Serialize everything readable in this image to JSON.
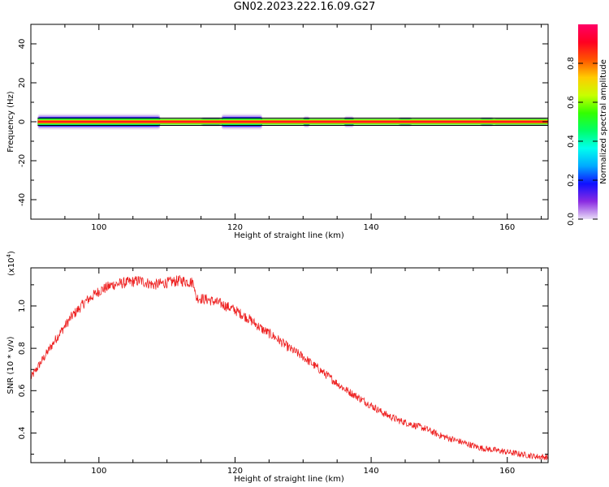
{
  "title": "GN02.2023.222.16.09.G27",
  "chart_data": [
    {
      "type": "heatmap",
      "xlabel": "Height of straight line (km)",
      "ylabel": "Frequency (Hz)",
      "xlim": [
        90,
        166
      ],
      "ylim": [
        -50,
        50
      ],
      "xticks": [
        100,
        120,
        140,
        160
      ],
      "yticks": [
        -40,
        -20,
        0,
        20,
        40
      ],
      "colorbar": {
        "label": "Normalized spectral amplitude",
        "range": [
          0,
          1
        ],
        "ticks": [
          "0.0",
          "0.2",
          "0.4",
          "0.6",
          "0.8"
        ],
        "colors": [
          "#e8dcf6",
          "#8a2be2",
          "#1010ff",
          "#00aaff",
          "#00ffee",
          "#00ff66",
          "#33ff00",
          "#c8ff00",
          "#ffcc00",
          "#ff5500",
          "#ff0022",
          "#ff0066"
        ]
      },
      "band": {
        "center_hz": 0,
        "segments": [
          {
            "x": [
              91,
              109
            ],
            "half_width_hz": 4.0
          },
          {
            "x": [
              109,
              115
            ],
            "half_width_hz": 1.5
          },
          {
            "x": [
              115,
              118
            ],
            "half_width_hz": 2.5
          },
          {
            "x": [
              118,
              124
            ],
            "half_width_hz": 4.0
          },
          {
            "x": [
              124,
              130
            ],
            "half_width_hz": 1.5
          },
          {
            "x": [
              130,
              131
            ],
            "half_width_hz": 3.0
          },
          {
            "x": [
              131,
              136
            ],
            "half_width_hz": 1.5
          },
          {
            "x": [
              136,
              137.5
            ],
            "half_width_hz": 3.0
          },
          {
            "x": [
              137.5,
              144
            ],
            "half_width_hz": 1.5
          },
          {
            "x": [
              144,
              146
            ],
            "half_width_hz": 2.5
          },
          {
            "x": [
              146,
              156
            ],
            "half_width_hz": 1.5
          },
          {
            "x": [
              156,
              158
            ],
            "half_width_hz": 2.5
          },
          {
            "x": [
              158,
              166
            ],
            "half_width_hz": 2.0
          }
        ]
      }
    },
    {
      "type": "line",
      "xlabel": "Height of straight line (km)",
      "ylabel": "SNR (10 * v/v)",
      "multiplier": "(x10",
      "multiplier_exp": "4",
      "multiplier_close": ")",
      "xlim": [
        90,
        166
      ],
      "ylim": [
        0.26,
        1.18
      ],
      "xticks": [
        100,
        120,
        140,
        160
      ],
      "yticks": [
        "0.4",
        "0.6",
        "0.8",
        "1.0"
      ],
      "color": "#ee2222",
      "series": [
        {
          "x": [
            90,
            92,
            94,
            96,
            98,
            100,
            102,
            104,
            106,
            108,
            110,
            112,
            114,
            114.2,
            116,
            118,
            120,
            122,
            124,
            126,
            128,
            130,
            132,
            134,
            136,
            138,
            140,
            142,
            144,
            146,
            148,
            150,
            152,
            154,
            156,
            158,
            160,
            162,
            164,
            166
          ],
          "values": [
            0.66,
            0.76,
            0.86,
            0.95,
            1.02,
            1.07,
            1.1,
            1.11,
            1.12,
            1.1,
            1.11,
            1.12,
            1.11,
            1.04,
            1.03,
            1.01,
            0.98,
            0.94,
            0.89,
            0.85,
            0.8,
            0.76,
            0.71,
            0.66,
            0.61,
            0.57,
            0.53,
            0.49,
            0.46,
            0.44,
            0.42,
            0.39,
            0.37,
            0.35,
            0.33,
            0.32,
            0.31,
            0.3,
            0.29,
            0.285
          ],
          "noise_amplitude": 0.025
        }
      ]
    }
  ]
}
